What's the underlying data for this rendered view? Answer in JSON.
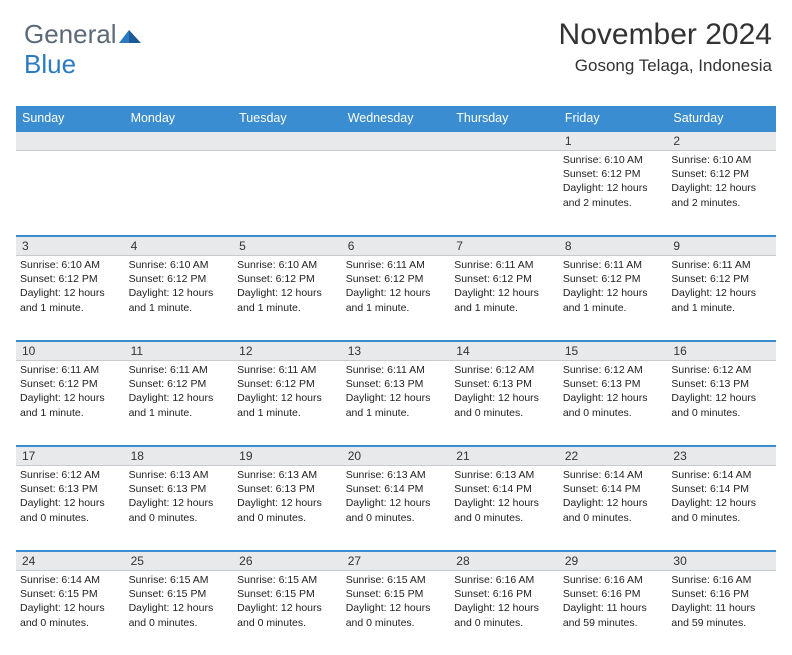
{
  "logo": {
    "text1": "General",
    "text2": "Blue"
  },
  "header": {
    "month": "November 2024",
    "location": "Gosong Telaga, Indonesia"
  },
  "colors": {
    "header_bg": "#3a8dd0",
    "daynum_bg": "#e7e9ea",
    "row_border": "#3a8dd0",
    "text": "#222222",
    "logo_gray": "#5a6a78",
    "logo_blue": "#2c7bc0"
  },
  "typography": {
    "title_fontsize": 30,
    "location_fontsize": 17,
    "dayheader_fontsize": 12.5,
    "daynum_fontsize": 12,
    "cell_fontsize": 10.5
  },
  "day_names": [
    "Sunday",
    "Monday",
    "Tuesday",
    "Wednesday",
    "Thursday",
    "Friday",
    "Saturday"
  ],
  "weeks": [
    {
      "nums": [
        "",
        "",
        "",
        "",
        "",
        "1",
        "2"
      ],
      "cells": [
        null,
        null,
        null,
        null,
        null,
        {
          "sr": "Sunrise: 6:10 AM",
          "ss": "Sunset: 6:12 PM",
          "dl1": "Daylight: 12 hours",
          "dl2": "and 2 minutes."
        },
        {
          "sr": "Sunrise: 6:10 AM",
          "ss": "Sunset: 6:12 PM",
          "dl1": "Daylight: 12 hours",
          "dl2": "and 2 minutes."
        }
      ]
    },
    {
      "nums": [
        "3",
        "4",
        "5",
        "6",
        "7",
        "8",
        "9"
      ],
      "cells": [
        {
          "sr": "Sunrise: 6:10 AM",
          "ss": "Sunset: 6:12 PM",
          "dl1": "Daylight: 12 hours",
          "dl2": "and 1 minute."
        },
        {
          "sr": "Sunrise: 6:10 AM",
          "ss": "Sunset: 6:12 PM",
          "dl1": "Daylight: 12 hours",
          "dl2": "and 1 minute."
        },
        {
          "sr": "Sunrise: 6:10 AM",
          "ss": "Sunset: 6:12 PM",
          "dl1": "Daylight: 12 hours",
          "dl2": "and 1 minute."
        },
        {
          "sr": "Sunrise: 6:11 AM",
          "ss": "Sunset: 6:12 PM",
          "dl1": "Daylight: 12 hours",
          "dl2": "and 1 minute."
        },
        {
          "sr": "Sunrise: 6:11 AM",
          "ss": "Sunset: 6:12 PM",
          "dl1": "Daylight: 12 hours",
          "dl2": "and 1 minute."
        },
        {
          "sr": "Sunrise: 6:11 AM",
          "ss": "Sunset: 6:12 PM",
          "dl1": "Daylight: 12 hours",
          "dl2": "and 1 minute."
        },
        {
          "sr": "Sunrise: 6:11 AM",
          "ss": "Sunset: 6:12 PM",
          "dl1": "Daylight: 12 hours",
          "dl2": "and 1 minute."
        }
      ]
    },
    {
      "nums": [
        "10",
        "11",
        "12",
        "13",
        "14",
        "15",
        "16"
      ],
      "cells": [
        {
          "sr": "Sunrise: 6:11 AM",
          "ss": "Sunset: 6:12 PM",
          "dl1": "Daylight: 12 hours",
          "dl2": "and 1 minute."
        },
        {
          "sr": "Sunrise: 6:11 AM",
          "ss": "Sunset: 6:12 PM",
          "dl1": "Daylight: 12 hours",
          "dl2": "and 1 minute."
        },
        {
          "sr": "Sunrise: 6:11 AM",
          "ss": "Sunset: 6:12 PM",
          "dl1": "Daylight: 12 hours",
          "dl2": "and 1 minute."
        },
        {
          "sr": "Sunrise: 6:11 AM",
          "ss": "Sunset: 6:13 PM",
          "dl1": "Daylight: 12 hours",
          "dl2": "and 1 minute."
        },
        {
          "sr": "Sunrise: 6:12 AM",
          "ss": "Sunset: 6:13 PM",
          "dl1": "Daylight: 12 hours",
          "dl2": "and 0 minutes."
        },
        {
          "sr": "Sunrise: 6:12 AM",
          "ss": "Sunset: 6:13 PM",
          "dl1": "Daylight: 12 hours",
          "dl2": "and 0 minutes."
        },
        {
          "sr": "Sunrise: 6:12 AM",
          "ss": "Sunset: 6:13 PM",
          "dl1": "Daylight: 12 hours",
          "dl2": "and 0 minutes."
        }
      ]
    },
    {
      "nums": [
        "17",
        "18",
        "19",
        "20",
        "21",
        "22",
        "23"
      ],
      "cells": [
        {
          "sr": "Sunrise: 6:12 AM",
          "ss": "Sunset: 6:13 PM",
          "dl1": "Daylight: 12 hours",
          "dl2": "and 0 minutes."
        },
        {
          "sr": "Sunrise: 6:13 AM",
          "ss": "Sunset: 6:13 PM",
          "dl1": "Daylight: 12 hours",
          "dl2": "and 0 minutes."
        },
        {
          "sr": "Sunrise: 6:13 AM",
          "ss": "Sunset: 6:13 PM",
          "dl1": "Daylight: 12 hours",
          "dl2": "and 0 minutes."
        },
        {
          "sr": "Sunrise: 6:13 AM",
          "ss": "Sunset: 6:14 PM",
          "dl1": "Daylight: 12 hours",
          "dl2": "and 0 minutes."
        },
        {
          "sr": "Sunrise: 6:13 AM",
          "ss": "Sunset: 6:14 PM",
          "dl1": "Daylight: 12 hours",
          "dl2": "and 0 minutes."
        },
        {
          "sr": "Sunrise: 6:14 AM",
          "ss": "Sunset: 6:14 PM",
          "dl1": "Daylight: 12 hours",
          "dl2": "and 0 minutes."
        },
        {
          "sr": "Sunrise: 6:14 AM",
          "ss": "Sunset: 6:14 PM",
          "dl1": "Daylight: 12 hours",
          "dl2": "and 0 minutes."
        }
      ]
    },
    {
      "nums": [
        "24",
        "25",
        "26",
        "27",
        "28",
        "29",
        "30"
      ],
      "cells": [
        {
          "sr": "Sunrise: 6:14 AM",
          "ss": "Sunset: 6:15 PM",
          "dl1": "Daylight: 12 hours",
          "dl2": "and 0 minutes."
        },
        {
          "sr": "Sunrise: 6:15 AM",
          "ss": "Sunset: 6:15 PM",
          "dl1": "Daylight: 12 hours",
          "dl2": "and 0 minutes."
        },
        {
          "sr": "Sunrise: 6:15 AM",
          "ss": "Sunset: 6:15 PM",
          "dl1": "Daylight: 12 hours",
          "dl2": "and 0 minutes."
        },
        {
          "sr": "Sunrise: 6:15 AM",
          "ss": "Sunset: 6:15 PM",
          "dl1": "Daylight: 12 hours",
          "dl2": "and 0 minutes."
        },
        {
          "sr": "Sunrise: 6:16 AM",
          "ss": "Sunset: 6:16 PM",
          "dl1": "Daylight: 12 hours",
          "dl2": "and 0 minutes."
        },
        {
          "sr": "Sunrise: 6:16 AM",
          "ss": "Sunset: 6:16 PM",
          "dl1": "Daylight: 11 hours",
          "dl2": "and 59 minutes."
        },
        {
          "sr": "Sunrise: 6:16 AM",
          "ss": "Sunset: 6:16 PM",
          "dl1": "Daylight: 11 hours",
          "dl2": "and 59 minutes."
        }
      ]
    }
  ]
}
